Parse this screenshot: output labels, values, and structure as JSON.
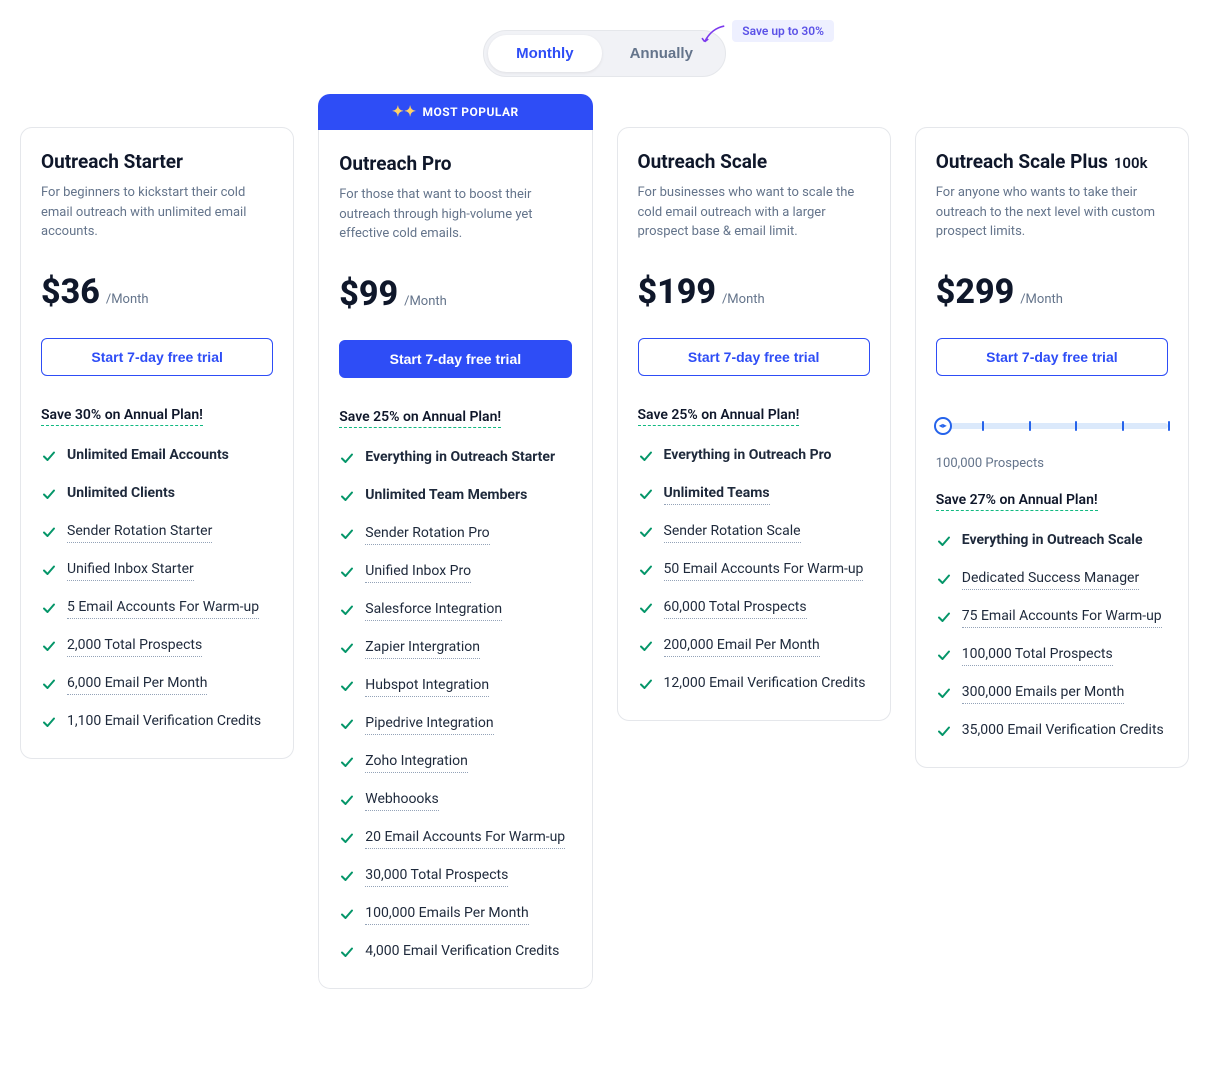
{
  "toggle": {
    "monthly": "Monthly",
    "annually": "Annually",
    "active": "monthly"
  },
  "save_badge": "Save up to 30%",
  "plans": {
    "starter": {
      "title": "Outreach Starter",
      "desc": "For beginners to kickstart their cold email outreach with unlimited email accounts.",
      "price": "$36",
      "period": "/Month",
      "trial": "Start 7-day free trial",
      "annual_save": "Save 30% on Annual Plan!",
      "features": [
        {
          "text": "Unlimited Email Accounts",
          "bold": true,
          "dotted": false
        },
        {
          "text": "Unlimited Clients",
          "bold": true,
          "dotted": false
        },
        {
          "text": "Sender Rotation Starter",
          "bold": false,
          "dotted": true
        },
        {
          "text": "Unified Inbox Starter",
          "bold": false,
          "dotted": true
        },
        {
          "text": "5 Email Accounts For Warm-up",
          "bold": false,
          "dotted": true
        },
        {
          "text": "2,000 Total Prospects",
          "bold": false,
          "dotted": true
        },
        {
          "text": "6,000 Email Per Month",
          "bold": false,
          "dotted": true
        },
        {
          "text": "1,100 Email Verification Credits",
          "bold": false,
          "dotted": false
        }
      ]
    },
    "pro": {
      "popular_label": "MOST POPULAR",
      "title": "Outreach Pro",
      "desc": "For those that want to boost their outreach through high-volume yet effective cold emails.",
      "price": "$99",
      "period": "/Month",
      "trial": "Start 7-day free trial",
      "annual_save": "Save 25% on Annual Plan!",
      "features": [
        {
          "text": "Everything in Outreach Starter",
          "bold": true,
          "dotted": false
        },
        {
          "text": "Unlimited Team Members",
          "bold": true,
          "dotted": false
        },
        {
          "text": "Sender Rotation Pro",
          "bold": false,
          "dotted": true
        },
        {
          "text": "Unified Inbox Pro",
          "bold": false,
          "dotted": true
        },
        {
          "text": "Salesforce Integration",
          "bold": false,
          "dotted": true
        },
        {
          "text": "Zapier Intergration",
          "bold": false,
          "dotted": true
        },
        {
          "text": "Hubspot Integration",
          "bold": false,
          "dotted": true
        },
        {
          "text": "Pipedrive Integration",
          "bold": false,
          "dotted": true
        },
        {
          "text": "Zoho Integration",
          "bold": false,
          "dotted": true
        },
        {
          "text": "Webhoooks",
          "bold": false,
          "dotted": true
        },
        {
          "text": "20 Email Accounts For Warm-up",
          "bold": false,
          "dotted": true
        },
        {
          "text": "30,000 Total Prospects",
          "bold": false,
          "dotted": true
        },
        {
          "text": "100,000 Emails Per Month",
          "bold": false,
          "dotted": true
        },
        {
          "text": "4,000 Email Verification Credits",
          "bold": false,
          "dotted": false
        }
      ]
    },
    "scale": {
      "title": "Outreach Scale",
      "desc": "For businesses who want to scale the cold email outreach with a larger prospect base & email limit.",
      "price": "$199",
      "period": "/Month",
      "trial": "Start 7-day free trial",
      "annual_save": "Save 25% on Annual Plan!",
      "features": [
        {
          "text": "Everything in Outreach Pro",
          "bold": true,
          "dotted": false
        },
        {
          "text": "Unlimited Teams",
          "bold": true,
          "dotted": true
        },
        {
          "text": "Sender Rotation Scale",
          "bold": false,
          "dotted": true
        },
        {
          "text": "50 Email Accounts For Warm-up",
          "bold": false,
          "dotted": true
        },
        {
          "text": "60,000 Total Prospects",
          "bold": false,
          "dotted": true
        },
        {
          "text": "200,000 Email Per Month",
          "bold": false,
          "dotted": true
        },
        {
          "text": "12,000 Email Verification Credits",
          "bold": false,
          "dotted": false
        }
      ]
    },
    "scale_plus": {
      "title": "Outreach Scale Plus",
      "title_suffix": "100k",
      "desc": "For anyone who wants to take their outreach to the next level with custom prospect limits.",
      "price": "$299",
      "period": "/Month",
      "trial": "Start 7-day free trial",
      "slider": {
        "ticks": [
          0,
          20,
          40,
          60,
          80,
          100
        ],
        "handle_pos": 0,
        "label": "100,000 Prospects"
      },
      "annual_save": "Save 27% on Annual Plan!",
      "features": [
        {
          "text": "Everything in Outreach Scale",
          "bold": true,
          "dotted": false
        },
        {
          "text": "Dedicated Success Manager",
          "bold": false,
          "dotted": true
        },
        {
          "text": "75 Email Accounts For Warm-up",
          "bold": false,
          "dotted": true
        },
        {
          "text": "100,000 Total Prospects",
          "bold": false,
          "dotted": true
        },
        {
          "text": "300,000 Emails per Month",
          "bold": false,
          "dotted": true
        },
        {
          "text": "35,000 Email Verification Credits",
          "bold": false,
          "dotted": false
        }
      ]
    }
  },
  "colors": {
    "primary": "#2e4df6",
    "check": "#059669",
    "text": "#0f172a",
    "muted": "#64748b",
    "border": "#e5e7eb"
  }
}
